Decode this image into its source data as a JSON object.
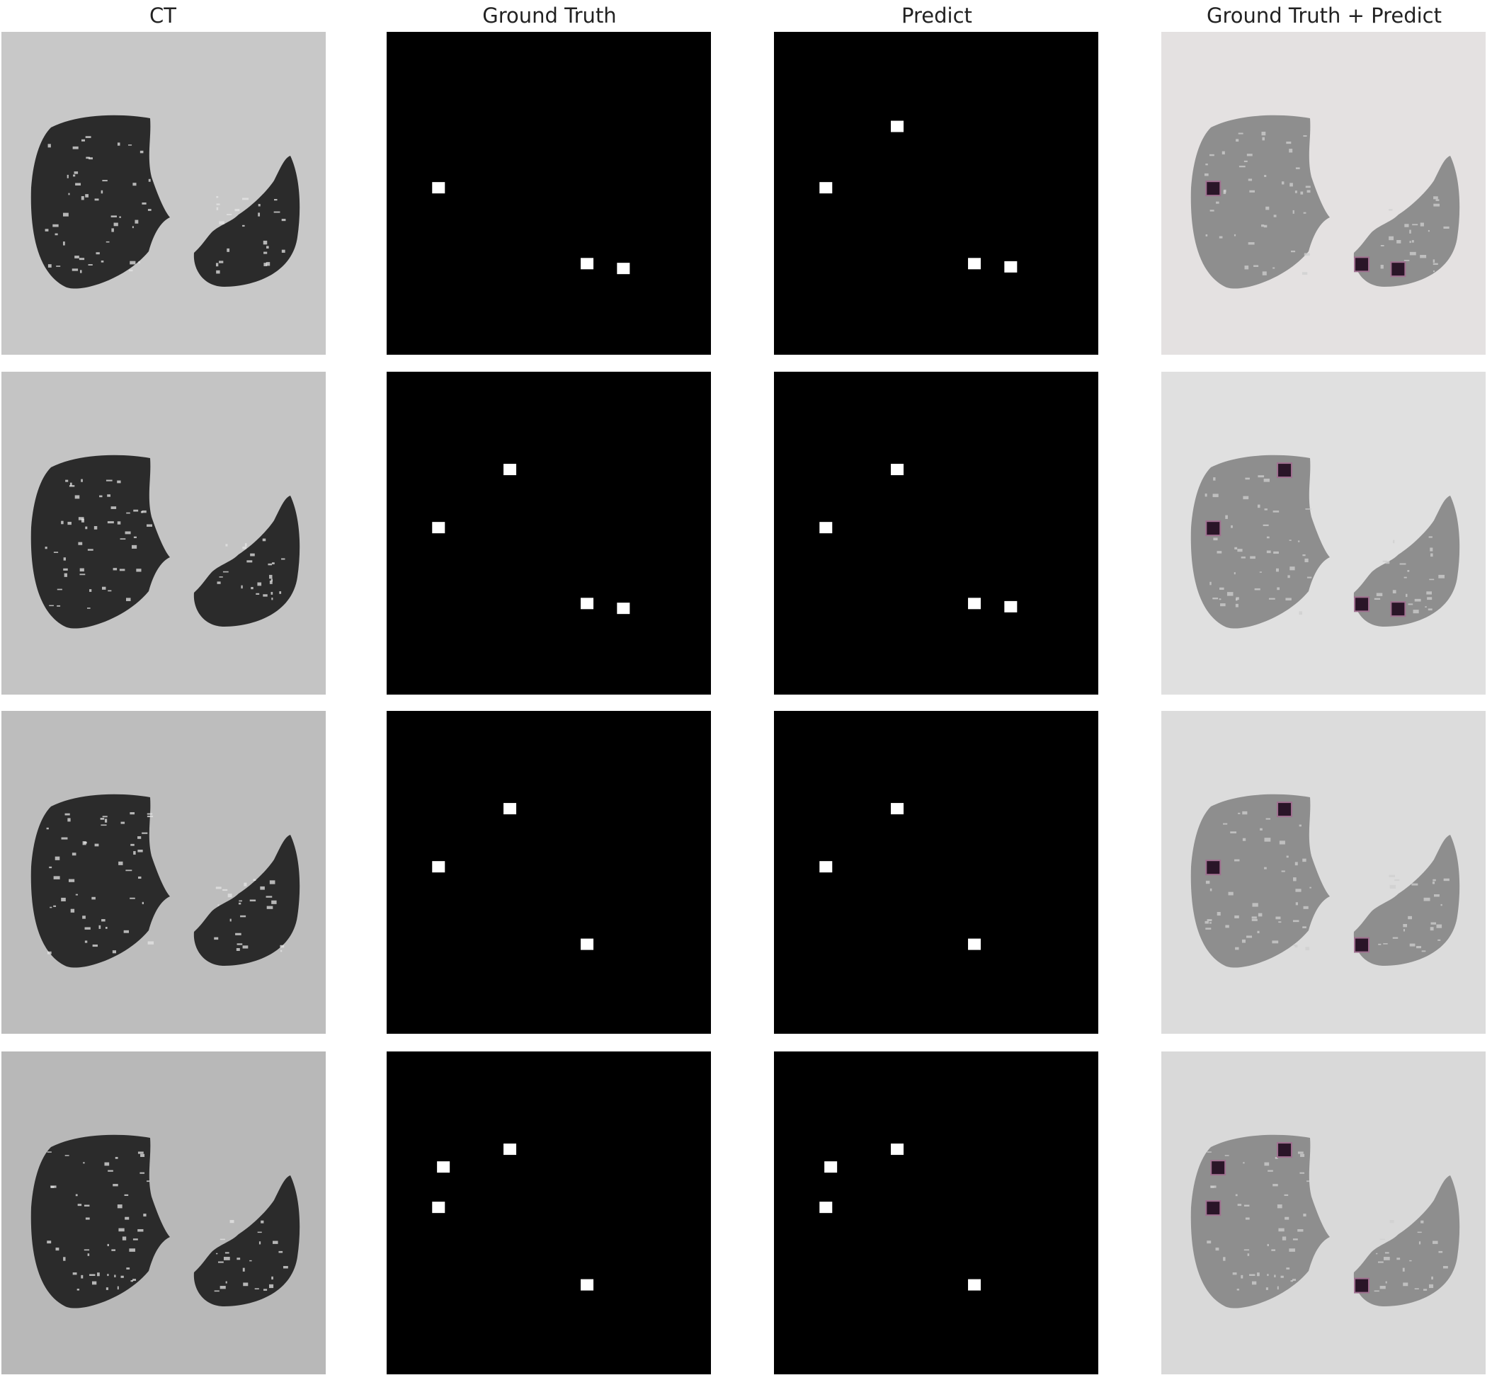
{
  "columns": [
    {
      "key": "ct",
      "title": "CT"
    },
    {
      "key": "gt",
      "title": "Ground Truth"
    },
    {
      "key": "pred",
      "title": "Predict"
    },
    {
      "key": "overlay",
      "title": "Ground Truth + Predict"
    }
  ],
  "colors": {
    "ct_background": [
      "#c8c8c8",
      "#c4c4c4",
      "#bdbdbd",
      "#b8b8b8"
    ],
    "ct_lung": "#2b2b2b",
    "ct_vessel": "#e6e6e6",
    "mask_background": "#000000",
    "mask_marker": "#ffffff",
    "overlay_background": [
      "#e4e1e1",
      "#e0e0e0",
      "#dcdcdc",
      "#d9d9d9"
    ],
    "overlay_lung": "#8e8e8e",
    "overlay_marker": "#2a1528",
    "overlay_marker_edge": "#a07090"
  },
  "rows": [
    {
      "ground_truth_markers": [
        [
          0.16,
          0.485
        ],
        [
          0.618,
          0.72
        ],
        [
          0.73,
          0.735
        ]
      ],
      "predict_markers": [
        [
          0.38,
          0.295
        ],
        [
          0.16,
          0.485
        ],
        [
          0.618,
          0.72
        ],
        [
          0.73,
          0.73
        ]
      ]
    },
    {
      "ground_truth_markers": [
        [
          0.38,
          0.305
        ],
        [
          0.16,
          0.485
        ],
        [
          0.618,
          0.72
        ],
        [
          0.73,
          0.735
        ]
      ],
      "predict_markers": [
        [
          0.38,
          0.305
        ],
        [
          0.16,
          0.485
        ],
        [
          0.618,
          0.72
        ],
        [
          0.73,
          0.73
        ]
      ]
    },
    {
      "ground_truth_markers": [
        [
          0.38,
          0.305
        ],
        [
          0.16,
          0.485
        ],
        [
          0.618,
          0.725
        ]
      ],
      "predict_markers": [
        [
          0.38,
          0.305
        ],
        [
          0.16,
          0.485
        ],
        [
          0.618,
          0.725
        ]
      ]
    },
    {
      "ground_truth_markers": [
        [
          0.38,
          0.305
        ],
        [
          0.175,
          0.36
        ],
        [
          0.16,
          0.485
        ],
        [
          0.618,
          0.725
        ]
      ],
      "predict_markers": [
        [
          0.38,
          0.305
        ],
        [
          0.175,
          0.36
        ],
        [
          0.16,
          0.485
        ],
        [
          0.618,
          0.725
        ]
      ]
    }
  ]
}
